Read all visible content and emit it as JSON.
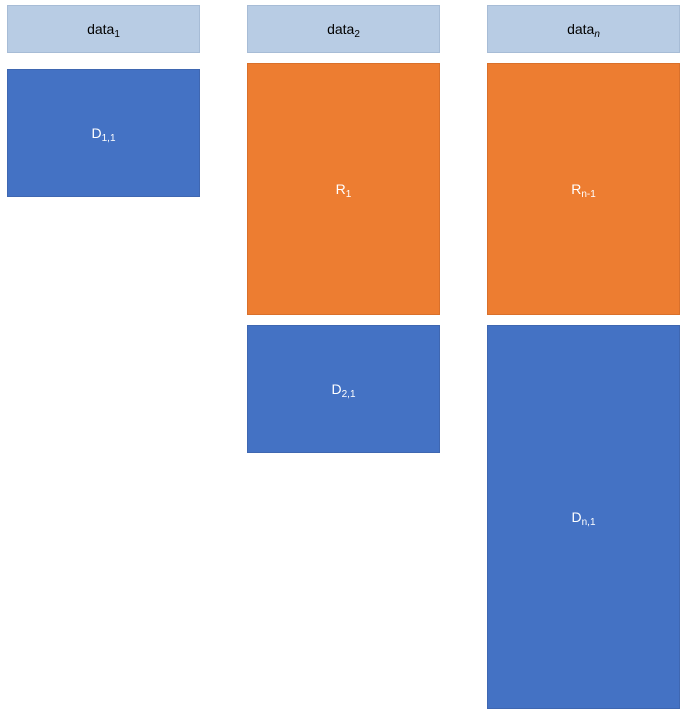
{
  "headers": [
    {
      "base": "data",
      "sub": "1"
    },
    {
      "base": "data",
      "sub": "2"
    },
    {
      "base": "data",
      "sub": "n"
    }
  ],
  "blocks": {
    "d11": {
      "base": "D",
      "sub": "1,1"
    },
    "r1": {
      "base": "R",
      "sub": "1"
    },
    "d21": {
      "base": "D",
      "sub": "2,1"
    },
    "rn": {
      "base": "R",
      "sub": "n-1"
    },
    "dn1": {
      "base": "D",
      "sub": "n,1"
    }
  },
  "colors": {
    "header": "#b8cce4",
    "data_block": "#4472c4",
    "result_block": "#ed7d31"
  }
}
